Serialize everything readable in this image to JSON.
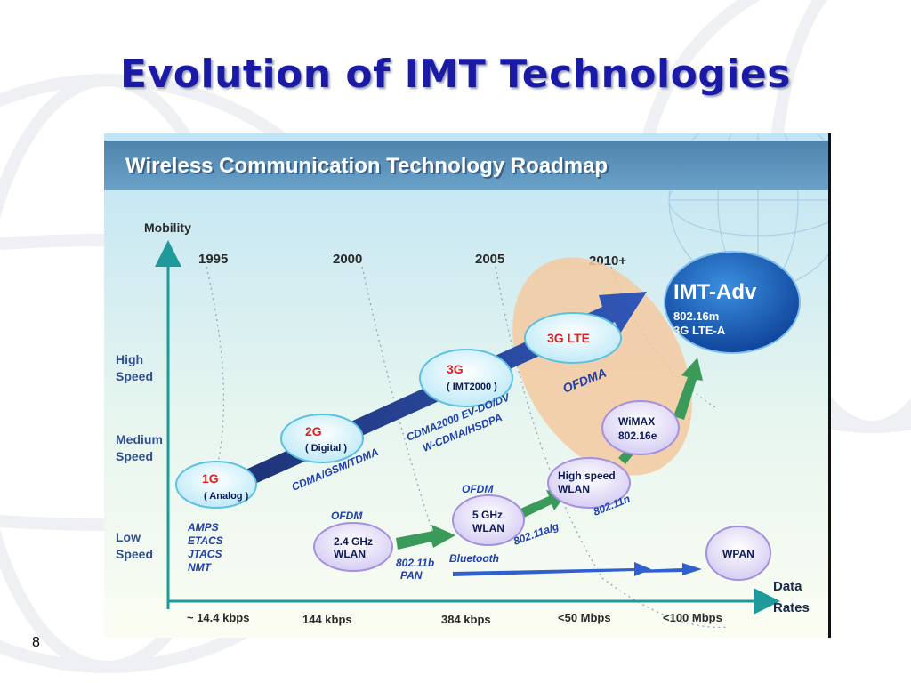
{
  "slide": {
    "title": "Evolution of IMT Technologies",
    "page_number": "8"
  },
  "diagram": {
    "banner_title": "Wireless Communication Technology Roadmap",
    "y_axis_label": "Mobility",
    "x_axis_label_line1": "Data",
    "x_axis_label_line2": "Rates",
    "years": [
      "1995",
      "2000",
      "2005",
      "2010+"
    ],
    "speeds": [
      {
        "line1": "High",
        "line2": "Speed"
      },
      {
        "line1": "Medium",
        "line2": "Speed"
      },
      {
        "line1": "Low",
        "line2": "Speed"
      }
    ],
    "rates": [
      "~ 14.4 kbps",
      "144 kbps",
      "384 kbps",
      "<50 Mbps",
      "<100 Mbps"
    ],
    "nodes": {
      "g1": {
        "title": "1G",
        "subtitle": "( Analog )"
      },
      "g2": {
        "title": "2G",
        "subtitle": "( Digital )"
      },
      "g3": {
        "title": "3G",
        "subtitle": "( IMT2000 )"
      },
      "lte": {
        "title": "3G LTE"
      },
      "imt_adv": {
        "title": "IMT-Adv",
        "line1": "802.16m",
        "line2": "3G LTE-A"
      },
      "wlan24": {
        "line1": "2.4 GHz",
        "line2": "WLAN"
      },
      "wlan5": {
        "line1": "5 GHz",
        "line2": "WLAN"
      },
      "hs_wlan": {
        "line1": "High speed",
        "line2": "WLAN"
      },
      "wimax": {
        "line1": "WiMAX",
        "line2": "802.16e"
      },
      "wpan": {
        "title": "WPAN"
      }
    },
    "labels": {
      "analog_list": [
        "AMPS",
        "ETACS",
        "JTACS",
        "NMT"
      ],
      "cdma_gsm": "CDMA/GSM/TDMA",
      "cdma2000": "CDMA2000  EV-DO/DV",
      "wcdma": "W-CDMA/HSDPA",
      "ofdma": "OFDMA",
      "ofdm_1": "OFDM",
      "ofdm_2": "OFDM",
      "dot11b": "802.11b",
      "pan": "PAN",
      "bluetooth": "Bluetooth",
      "dot11ag": "802.11a/g",
      "dot11n": "802.11n"
    },
    "colors": {
      "title_blue": "#1a1aa6",
      "banner_dark": "#1f4e78",
      "node_red": "#e02020",
      "node_navy": "#0a1a5a",
      "label_blue": "#1f3fb0",
      "arrow_green": "#3a9a5a",
      "axis_teal": "#1e9a9a",
      "ofdma_orange": "#f5c9a0"
    }
  }
}
